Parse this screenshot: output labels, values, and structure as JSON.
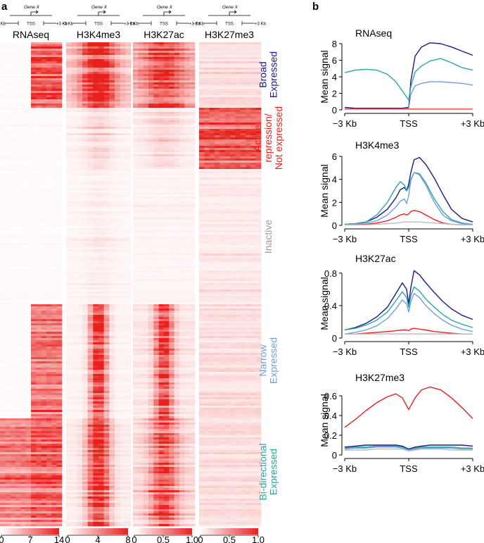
{
  "panel_a": {
    "letter": "a",
    "gene_diagram": {
      "gene": "Gene X",
      "tss": "TSS",
      "left": "−3 Kb",
      "right": "+3 Kb"
    },
    "columns": [
      {
        "name": "RNAseq"
      },
      {
        "name": "H3K4me3"
      },
      {
        "name": "H3K27ac"
      },
      {
        "name": "H3K27me3"
      }
    ],
    "clusters": [
      {
        "label_lines": [
          "Broad",
          "Expressed"
        ],
        "color": "#1a1a8c"
      },
      {
        "label_lines": [
          "Active",
          "repression/",
          "Not expressed"
        ],
        "color": "#e8201c"
      },
      {
        "label_lines": [
          "Inactive"
        ],
        "color": "#9a9a9a"
      },
      {
        "label_lines": [
          "Narrow",
          "Expressed"
        ],
        "color": "#6f9fe0"
      },
      {
        "label_lines": [
          "Bi-directional",
          "Expressed"
        ],
        "color": "#2aa6a0"
      }
    ],
    "colorbars": [
      {
        "for": "RNAseq",
        "ticks": [
          "0",
          "7",
          "14"
        ]
      },
      {
        "for": "H3K4me3",
        "ticks": [
          "0",
          "4",
          "8"
        ]
      },
      {
        "for": "H3K27ac",
        "ticks": [
          "0",
          "0.5",
          "1.0"
        ]
      },
      {
        "for": "H3K27me3",
        "ticks": [
          "0",
          "0.5",
          "1.0"
        ]
      }
    ]
  },
  "panel_b": {
    "letter": "b"
  },
  "colors": {
    "broad": "#1a1a8c",
    "repression": "#e8201c",
    "inactive": "#bbbbbb",
    "narrow": "#6f9fe0",
    "bidirectional": "#2aa6a0",
    "heat": "#e8201c"
  },
  "chart_data": [
    {
      "type": "line",
      "title": "RNAseq",
      "ylabel": "Mean signal",
      "xticks": [
        "−3 Kb",
        "TSS",
        "+3 Kb"
      ],
      "x": [
        -3,
        -2.5,
        -2,
        -1.5,
        -1,
        -0.6,
        -0.3,
        0,
        0.1,
        0.3,
        0.6,
        1,
        1.5,
        2,
        2.5,
        3
      ],
      "ylim": [
        0,
        8
      ],
      "yticks": [
        0,
        2,
        4,
        6,
        8
      ],
      "series": [
        {
          "key": "broad",
          "values": [
            0.3,
            0.2,
            0.2,
            0.2,
            0.2,
            0.2,
            0.2,
            0.3,
            3.5,
            6.5,
            7.6,
            8.1,
            8.0,
            7.6,
            7.1,
            6.6
          ]
        },
        {
          "key": "bidirectional",
          "values": [
            4.5,
            4.8,
            4.9,
            4.8,
            4.3,
            3.4,
            2.3,
            1.2,
            2.8,
            4.6,
            5.3,
            5.9,
            6.2,
            5.7,
            5.1,
            4.8
          ]
        },
        {
          "key": "narrow",
          "values": [
            0.1,
            0.1,
            0.1,
            0.1,
            0.1,
            0.1,
            0.1,
            0.2,
            1.9,
            2.9,
            3.2,
            3.4,
            3.4,
            3.3,
            3.2,
            3.0
          ]
        },
        {
          "key": "repression",
          "values": [
            0.1,
            0.1,
            0.1,
            0.1,
            0.1,
            0.1,
            0.1,
            0.1,
            0.1,
            0.1,
            0.1,
            0.1,
            0.1,
            0.1,
            0.1,
            0.1
          ]
        },
        {
          "key": "inactive",
          "values": [
            0.05,
            0.05,
            0.05,
            0.05,
            0.05,
            0.05,
            0.05,
            0.05,
            0.05,
            0.05,
            0.05,
            0.05,
            0.05,
            0.05,
            0.05,
            0.05
          ]
        }
      ]
    },
    {
      "type": "line",
      "title": "H3K4me3",
      "ylabel": "Mean signal",
      "xticks": [
        "−3 Kb",
        "TSS",
        "+3 Kb"
      ],
      "x": [
        -3,
        -2.5,
        -2,
        -1.5,
        -1,
        -0.6,
        -0.4,
        -0.2,
        -0.1,
        0,
        0.1,
        0.25,
        0.5,
        0.8,
        1.2,
        1.6,
        2,
        2.5,
        3
      ],
      "ylim": [
        0,
        6
      ],
      "yticks": [
        0,
        2,
        4,
        6
      ],
      "series": [
        {
          "key": "broad",
          "values": [
            0.1,
            0.15,
            0.3,
            0.7,
            1.4,
            2.4,
            3.1,
            3.3,
            3.0,
            3.6,
            4.6,
            5.7,
            5.9,
            5.3,
            4.1,
            2.7,
            1.4,
            0.6,
            0.3
          ]
        },
        {
          "key": "bidirectional",
          "values": [
            0.1,
            0.15,
            0.3,
            0.9,
            2.0,
            3.3,
            3.8,
            3.5,
            3.0,
            3.3,
            4.0,
            4.6,
            4.5,
            3.7,
            2.3,
            1.2,
            0.5,
            0.2,
            0.1
          ]
        },
        {
          "key": "narrow",
          "values": [
            0.05,
            0.1,
            0.2,
            0.4,
            0.9,
            1.6,
            2.1,
            2.3,
            1.9,
            2.6,
            3.9,
            4.6,
            4.4,
            3.5,
            2.0,
            0.9,
            0.4,
            0.15,
            0.1
          ]
        },
        {
          "key": "repression",
          "values": [
            0.05,
            0.05,
            0.1,
            0.2,
            0.4,
            0.7,
            0.9,
            1.0,
            0.9,
            1.0,
            1.2,
            1.3,
            1.2,
            0.9,
            0.5,
            0.2,
            0.1,
            0.05,
            0.05
          ]
        },
        {
          "key": "inactive",
          "values": [
            0.05,
            0.05,
            0.05,
            0.1,
            0.15,
            0.2,
            0.25,
            0.3,
            0.3,
            0.3,
            0.3,
            0.3,
            0.3,
            0.25,
            0.2,
            0.15,
            0.1,
            0.05,
            0.05
          ]
        }
      ]
    },
    {
      "type": "line",
      "title": "H3K27ac",
      "ylabel": "Mean signal",
      "xticks": [
        "−3 Kb",
        "TSS",
        "+3 Kb"
      ],
      "x": [
        -3,
        -2.5,
        -2,
        -1.5,
        -1,
        -0.6,
        -0.3,
        -0.1,
        0,
        0.1,
        0.25,
        0.5,
        0.8,
        1.2,
        1.6,
        2,
        2.5,
        3
      ],
      "ylim": [
        0,
        0.85
      ],
      "yticks": [
        0,
        0.4,
        0.8
      ],
      "series": [
        {
          "key": "broad",
          "values": [
            0.1,
            0.13,
            0.18,
            0.26,
            0.38,
            0.55,
            0.68,
            0.6,
            0.42,
            0.62,
            0.83,
            0.78,
            0.68,
            0.56,
            0.45,
            0.36,
            0.28,
            0.23
          ]
        },
        {
          "key": "bidirectional",
          "values": [
            0.1,
            0.12,
            0.16,
            0.22,
            0.32,
            0.46,
            0.57,
            0.5,
            0.38,
            0.52,
            0.63,
            0.58,
            0.48,
            0.38,
            0.29,
            0.22,
            0.17,
            0.13
          ]
        },
        {
          "key": "narrow",
          "values": [
            0.05,
            0.07,
            0.1,
            0.15,
            0.24,
            0.36,
            0.47,
            0.42,
            0.32,
            0.45,
            0.55,
            0.5,
            0.4,
            0.3,
            0.22,
            0.16,
            0.11,
            0.08
          ]
        },
        {
          "key": "repression",
          "values": [
            0.05,
            0.05,
            0.06,
            0.07,
            0.08,
            0.09,
            0.1,
            0.1,
            0.09,
            0.11,
            0.12,
            0.11,
            0.1,
            0.08,
            0.07,
            0.06,
            0.05,
            0.05
          ]
        },
        {
          "key": "inactive",
          "values": [
            0.05,
            0.05,
            0.05,
            0.05,
            0.05,
            0.05,
            0.05,
            0.05,
            0.05,
            0.05,
            0.05,
            0.05,
            0.05,
            0.05,
            0.05,
            0.05,
            0.05,
            0.05
          ]
        }
      ]
    },
    {
      "type": "line",
      "title": "H3K27me3",
      "ylabel": "Mean signal",
      "xticks": [
        "−3 Kb",
        "TSS",
        "+3 Kb"
      ],
      "x": [
        -3,
        -2.5,
        -2,
        -1.5,
        -1,
        -0.6,
        -0.3,
        0,
        0.3,
        0.6,
        1,
        1.5,
        2,
        2.5,
        3
      ],
      "ylim": [
        0,
        0.7
      ],
      "yticks": [
        0,
        0.2,
        0.4,
        0.6
      ],
      "series": [
        {
          "key": "repression",
          "values": [
            0.28,
            0.36,
            0.45,
            0.53,
            0.59,
            0.62,
            0.58,
            0.46,
            0.58,
            0.66,
            0.69,
            0.66,
            0.58,
            0.48,
            0.37
          ]
        },
        {
          "key": "broad",
          "values": [
            0.08,
            0.09,
            0.1,
            0.1,
            0.1,
            0.1,
            0.09,
            0.06,
            0.08,
            0.09,
            0.1,
            0.1,
            0.1,
            0.1,
            0.09
          ]
        },
        {
          "key": "bidirectional",
          "values": [
            0.07,
            0.08,
            0.08,
            0.09,
            0.09,
            0.09,
            0.08,
            0.05,
            0.07,
            0.08,
            0.08,
            0.08,
            0.08,
            0.07,
            0.07
          ]
        },
        {
          "key": "narrow",
          "values": [
            0.06,
            0.07,
            0.07,
            0.08,
            0.08,
            0.08,
            0.07,
            0.05,
            0.06,
            0.07,
            0.07,
            0.07,
            0.07,
            0.06,
            0.06
          ]
        },
        {
          "key": "inactive",
          "values": [
            0.05,
            0.05,
            0.05,
            0.06,
            0.06,
            0.06,
            0.06,
            0.04,
            0.05,
            0.06,
            0.06,
            0.06,
            0.05,
            0.05,
            0.05
          ]
        }
      ]
    }
  ]
}
